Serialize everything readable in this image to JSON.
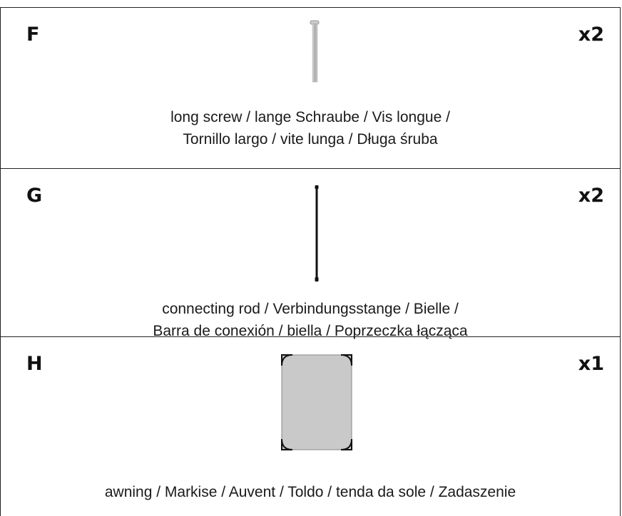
{
  "parts": [
    {
      "letter": "F",
      "quantity": "x2",
      "description": [
        "long screw / lange Schraube / Vis longue /",
        "Tornillo largo / vite lunga / Długa śruba"
      ]
    },
    {
      "letter": "G",
      "quantity": "x2",
      "description": [
        "connecting rod / Verbindungsstange / Bielle /",
        "Barra de conexión / biella / Poprzeczka łącząca"
      ]
    },
    {
      "letter": "H",
      "quantity": "x1",
      "description": [
        "awning / Markise / Auvent / Toldo / tenda da sole / Zadaszenie"
      ]
    }
  ]
}
